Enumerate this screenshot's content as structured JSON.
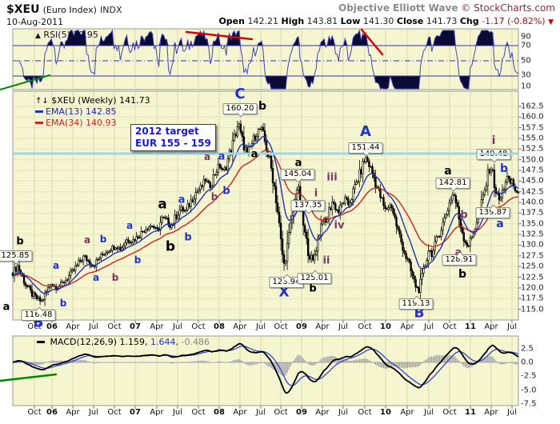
{
  "header": {
    "symbol": "$XEU",
    "name": "(Euro Index)",
    "exchange": "INDX",
    "date": "10-Aug-2011",
    "watermark": "Objective Elliott Wave",
    "credit": "© StockCharts.com",
    "quote": {
      "open_label": "Open",
      "open": "142.21",
      "high_label": "High",
      "high": "143.81",
      "low_label": "Low",
      "low": "141.30",
      "close_label": "Close",
      "close": "141.73",
      "chg_label": "Chg",
      "chg": "-1.17 (-0.82%)",
      "arrow": "▼"
    }
  },
  "rsi": {
    "label": "RSI(5) 39.95",
    "icon": "▲",
    "axis": [
      [
        "90",
        46
      ],
      [
        "70",
        57
      ],
      [
        "50",
        76
      ],
      [
        "30",
        94
      ],
      [
        "10",
        108
      ]
    ],
    "lines": {
      "overbought": 70,
      "mid": 50,
      "oversold": 30
    }
  },
  "main": {
    "legend_prefix": "↑↓",
    "legend_title": "$XEU (Weekly) 141.73",
    "ema13_label": "EMA(13) 142.85",
    "ema34_label": "EMA(34) 140.93",
    "target_line1": "2012 target",
    "target_line2": "EUR 155 - 159",
    "axis": [
      "162.5",
      "160.0",
      "157.5",
      "155.0",
      "152.5",
      "150.0",
      "147.5",
      "145.0",
      "142.5",
      "140.0",
      "137.5",
      "135.0",
      "132.5",
      "130.0",
      "127.5",
      "125.0",
      "122.5",
      "120.0",
      "117.5",
      "115.0"
    ]
  },
  "macd": {
    "label": "MACD(12,26,9)",
    "v1": "1.159,",
    "v2": "1.644,",
    "v3": "-0.486",
    "axis": [
      [
        "2.5",
        436
      ],
      [
        "0.0",
        453
      ],
      [
        "-2.5",
        470
      ],
      [
        "-5.0",
        488
      ],
      [
        "-7.5",
        505
      ]
    ]
  },
  "x_axis": {
    "labels": [
      [
        "Oct",
        43,
        0
      ],
      [
        "06",
        65,
        1
      ],
      [
        "Apr",
        91,
        0
      ],
      [
        "Jul",
        117,
        0
      ],
      [
        "Oct",
        143,
        0
      ],
      [
        "07",
        169,
        1
      ],
      [
        "Apr",
        196,
        0
      ],
      [
        "Jul",
        222,
        0
      ],
      [
        "Oct",
        248,
        0
      ],
      [
        "08",
        274,
        1
      ],
      [
        "Apr",
        300,
        0
      ],
      [
        "Jul",
        326,
        0
      ],
      [
        "Oct",
        351,
        0
      ],
      [
        "09",
        377,
        1
      ],
      [
        "Apr",
        403,
        0
      ],
      [
        "Jul",
        429,
        0
      ],
      [
        "Oct",
        456,
        0
      ],
      [
        "10",
        482,
        1
      ],
      [
        "Apr",
        509,
        0
      ],
      [
        "Jul",
        536,
        0
      ],
      [
        "Oct",
        562,
        0
      ],
      [
        "11",
        588,
        1
      ],
      [
        "Apr",
        614,
        0
      ],
      [
        "Jul",
        640,
        0
      ]
    ]
  },
  "chart_data": {
    "type": "candlestick",
    "title": "$XEU Euro Index Weekly",
    "x_range": "Oct-2005 to Aug-2011 (weekly)",
    "y_range": [
      115.0,
      162.5
    ],
    "indicators": [
      "RSI(5)",
      "EMA(13)",
      "EMA(34)",
      "MACD(12,26,9)"
    ],
    "resistance_level": 151.44,
    "keyframes": [
      [
        16,
        123.5
      ],
      [
        22,
        125.2
      ],
      [
        27,
        123.0
      ],
      [
        33,
        120.5
      ],
      [
        40,
        118.5
      ],
      [
        46,
        117.5
      ],
      [
        52,
        116.8
      ],
      [
        58,
        119.0
      ],
      [
        64,
        121.2
      ],
      [
        70,
        120.0
      ],
      [
        78,
        121.0
      ],
      [
        85,
        122.5
      ],
      [
        92,
        124.0
      ],
      [
        99,
        126.0
      ],
      [
        105,
        127.4
      ],
      [
        111,
        126.2
      ],
      [
        117,
        125.2
      ],
      [
        124,
        127.0
      ],
      [
        131,
        128.3
      ],
      [
        138,
        129.2
      ],
      [
        145,
        129.8
      ],
      [
        151,
        129.1
      ],
      [
        158,
        131.3
      ],
      [
        164,
        130.9
      ],
      [
        171,
        131.8
      ],
      [
        178,
        133.2
      ],
      [
        185,
        134.3
      ],
      [
        191,
        134.6
      ],
      [
        196,
        133.1
      ],
      [
        203,
        136.4
      ],
      [
        208,
        135.9
      ],
      [
        214,
        134.4
      ],
      [
        220,
        136.8
      ],
      [
        226,
        138.7
      ],
      [
        232,
        137.7
      ],
      [
        238,
        140.1
      ],
      [
        245,
        142.4
      ],
      [
        251,
        143.4
      ],
      [
        257,
        145.2
      ],
      [
        262,
        143.7
      ],
      [
        268,
        146.6
      ],
      [
        274,
        148.7
      ],
      [
        280,
        147.1
      ],
      [
        286,
        150.8
      ],
      [
        291,
        153.8
      ],
      [
        295,
        156.5
      ],
      [
        298,
        158.6
      ],
      [
        301,
        155.6
      ],
      [
        305,
        153.2
      ],
      [
        309,
        151.4
      ],
      [
        313,
        153.0
      ],
      [
        318,
        155.2
      ],
      [
        322,
        156.6
      ],
      [
        326,
        157.4
      ],
      [
        330,
        155.0
      ],
      [
        334,
        152.0
      ],
      [
        338,
        148.9
      ],
      [
        343,
        143.8
      ],
      [
        348,
        136.5
      ],
      [
        352,
        129.0
      ],
      [
        355,
        125.5
      ],
      [
        358,
        128.5
      ],
      [
        362,
        133.0
      ],
      [
        366,
        138.0
      ],
      [
        369,
        141.5
      ],
      [
        372,
        143.8
      ],
      [
        375,
        140.0
      ],
      [
        378,
        136.0
      ],
      [
        382,
        131.5
      ],
      [
        386,
        128.3
      ],
      [
        391,
        126.0
      ],
      [
        395,
        129.5
      ],
      [
        399,
        133.0
      ],
      [
        403,
        136.2
      ],
      [
        407,
        135.0
      ],
      [
        411,
        137.8
      ],
      [
        415,
        140.2
      ],
      [
        419,
        139.0
      ],
      [
        423,
        137.6
      ],
      [
        427,
        139.3
      ],
      [
        431,
        140.9
      ],
      [
        435,
        139.4
      ],
      [
        439,
        141.2
      ],
      [
        444,
        143.9
      ],
      [
        449,
        146.3
      ],
      [
        453,
        148.6
      ],
      [
        457,
        150.6
      ],
      [
        461,
        149.0
      ],
      [
        465,
        147.2
      ],
      [
        469,
        144.9
      ],
      [
        473,
        142.6
      ],
      [
        477,
        140.6
      ],
      [
        481,
        138.2
      ],
      [
        485,
        138.9
      ],
      [
        489,
        139.6
      ],
      [
        493,
        136.6
      ],
      [
        497,
        133.6
      ],
      [
        501,
        131.1
      ],
      [
        505,
        128.9
      ],
      [
        509,
        126.4
      ],
      [
        513,
        124.2
      ],
      [
        517,
        121.7
      ],
      [
        521,
        119.9
      ],
      [
        524,
        119.6
      ],
      [
        528,
        122.4
      ],
      [
        532,
        126.0
      ],
      [
        536,
        129.2
      ],
      [
        540,
        127.6
      ],
      [
        544,
        129.9
      ],
      [
        548,
        132.3
      ],
      [
        552,
        134.2
      ],
      [
        556,
        136.3
      ],
      [
        560,
        138.9
      ],
      [
        564,
        141.2
      ],
      [
        567,
        142.2
      ],
      [
        570,
        139.9
      ],
      [
        573,
        136.9
      ],
      [
        577,
        133.8
      ],
      [
        581,
        131.2
      ],
      [
        585,
        129.7
      ],
      [
        589,
        131.4
      ],
      [
        593,
        133.9
      ],
      [
        597,
        136.4
      ],
      [
        601,
        138.9
      ],
      [
        605,
        142.0
      ],
      [
        608,
        144.6
      ],
      [
        611,
        147.3
      ],
      [
        613,
        148.8
      ],
      [
        616,
        146.4
      ],
      [
        619,
        143.4
      ],
      [
        622,
        141.2
      ],
      [
        625,
        140.3
      ],
      [
        628,
        142.3
      ],
      [
        631,
        144.8
      ],
      [
        634,
        145.9
      ],
      [
        637,
        144.2
      ],
      [
        640,
        145.2
      ],
      [
        643,
        143.4
      ],
      [
        646,
        142.2
      ],
      [
        648,
        141.7
      ]
    ],
    "callouts": [
      [
        "125.85",
        19,
        313,
        "pd"
      ],
      [
        "116.48",
        48,
        387,
        "pu"
      ],
      [
        "160.20",
        300,
        129,
        "pd"
      ],
      [
        "145.04",
        372,
        211,
        "pd"
      ],
      [
        "137.35",
        385,
        250,
        "pd"
      ],
      [
        "123.94",
        358,
        346,
        "pu"
      ],
      [
        "125.01",
        393,
        341,
        "pu"
      ],
      [
        "151.44",
        457,
        178,
        "pd"
      ],
      [
        "142.81",
        566,
        222,
        "pd"
      ],
      [
        "149.48",
        617,
        186,
        "pd"
      ],
      [
        "139.87",
        616,
        259,
        "pu"
      ],
      [
        "128.91",
        574,
        318,
        "pu"
      ],
      [
        "119.13",
        520,
        373,
        "pu"
      ]
    ],
    "wave_labels": [
      [
        "b",
        25,
        302,
        "k",
        13
      ],
      [
        "a",
        8,
        384,
        "k",
        13
      ],
      [
        "a",
        318,
        193,
        "k",
        13
      ],
      [
        "b",
        328,
        133,
        "k",
        14
      ],
      [
        "a",
        203,
        256,
        "k",
        17
      ],
      [
        "b",
        213,
        309,
        "k",
        17
      ],
      [
        "a",
        373,
        204,
        "k",
        13
      ],
      [
        "b",
        391,
        361,
        "k",
        13
      ],
      [
        "a",
        560,
        214,
        "k",
        14
      ],
      [
        "b",
        578,
        343,
        "k",
        14
      ],
      [
        "B",
        48,
        404,
        "b",
        17
      ],
      [
        "C",
        300,
        118,
        "b",
        18
      ],
      [
        "A",
        457,
        165,
        "b",
        18
      ],
      [
        "X",
        355,
        366,
        "b",
        17
      ],
      [
        "B",
        524,
        392,
        "b",
        17
      ],
      [
        "a",
        70,
        332,
        "b",
        12
      ],
      [
        "b",
        79,
        379,
        "b",
        12
      ],
      [
        "b",
        129,
        299,
        "b",
        12
      ],
      [
        "a",
        120,
        347,
        "b",
        12
      ],
      [
        "b",
        172,
        325,
        "b",
        12
      ],
      [
        "a",
        162,
        282,
        "b",
        12
      ],
      [
        "a",
        227,
        250,
        "b",
        13
      ],
      [
        "b",
        235,
        297,
        "b",
        13
      ],
      [
        "a",
        277,
        196,
        "b",
        13
      ],
      [
        "b",
        283,
        239,
        "b",
        13
      ],
      [
        "b",
        630,
        211,
        "b",
        14
      ],
      [
        "a",
        625,
        280,
        "b",
        14
      ],
      [
        "a",
        109,
        300,
        "p",
        12
      ],
      [
        "b",
        144,
        347,
        "p",
        12
      ],
      [
        "a",
        259,
        196,
        "p",
        12
      ],
      [
        "b",
        268,
        246,
        "p",
        12
      ],
      [
        "i",
        395,
        242,
        "p",
        13
      ],
      [
        "ii",
        408,
        326,
        "p",
        13
      ],
      [
        "iii",
        415,
        222,
        "p",
        13
      ],
      [
        "iv",
        424,
        282,
        "p",
        13
      ],
      [
        "i",
        617,
        176,
        "p",
        14
      ],
      [
        "b",
        580,
        269,
        "p",
        13
      ],
      [
        "a",
        573,
        316,
        "p",
        13
      ]
    ],
    "trendlines": [
      [
        0,
        112,
        62,
        94,
        "#008800",
        2
      ],
      [
        233,
        40,
        315,
        49,
        "#dd0000",
        2.5
      ],
      [
        452,
        37,
        478,
        68,
        "#dd0000",
        2.5
      ],
      [
        0,
        476,
        70,
        468,
        "#008800",
        2.5
      ]
    ],
    "colors": {
      "panel_bg": "#f5f5cf",
      "grid": "#d9d9b6",
      "grid_h": "#e4e4c4",
      "border": "#999988",
      "candle": "#000000",
      "ema13": "#2233bb",
      "ema34": "#cc2222",
      "rsi_line": "#4444bb",
      "rsi_fill": "#0a0a33",
      "cyan": "#9ed7e8",
      "macd_line": "#000000",
      "signal": "#3344cc",
      "hist": "#9a9ab4"
    }
  }
}
